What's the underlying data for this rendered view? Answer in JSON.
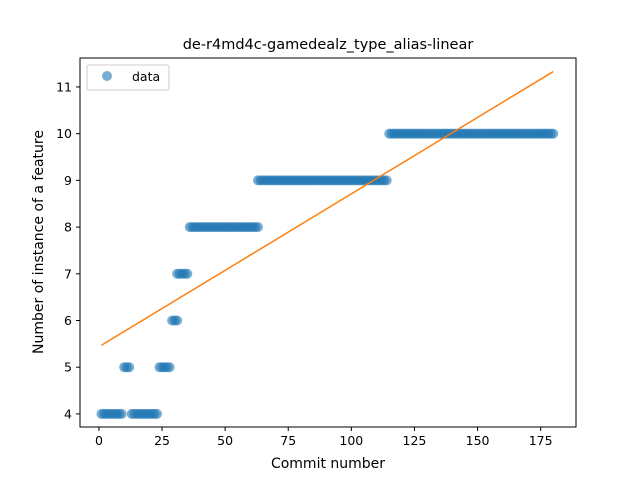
{
  "chart_data": {
    "type": "scatter",
    "title": "de-r4md4c-gamedealz_type_alias-linear",
    "xlabel": "Commit number",
    "ylabel": "Number of instance of a feature",
    "xlim": [
      -7.5,
      189
    ],
    "ylim": [
      3.72,
      11.62
    ],
    "xticks": [
      0,
      25,
      50,
      75,
      100,
      125,
      150,
      175
    ],
    "yticks": [
      4,
      5,
      6,
      7,
      8,
      9,
      10,
      11
    ],
    "legend_position": "top-left",
    "series": [
      {
        "name": "data",
        "kind": "points",
        "color": "#1f77b4",
        "segments": [
          {
            "from": 1,
            "to": 9,
            "y": 4
          },
          {
            "from": 10,
            "to": 12,
            "y": 5
          },
          {
            "from": 13,
            "to": 23,
            "y": 4
          },
          {
            "from": 24,
            "to": 28,
            "y": 5
          },
          {
            "from": 29,
            "to": 31,
            "y": 6
          },
          {
            "from": 31,
            "to": 35,
            "y": 7
          },
          {
            "from": 36,
            "to": 63,
            "y": 8
          },
          {
            "from": 63,
            "to": 114,
            "y": 9
          },
          {
            "from": 115,
            "to": 180,
            "y": 10
          }
        ]
      },
      {
        "name": "fit",
        "kind": "line",
        "color": "#ff7f0e",
        "x": [
          1,
          180
        ],
        "y": [
          5.47,
          11.33
        ]
      }
    ]
  }
}
